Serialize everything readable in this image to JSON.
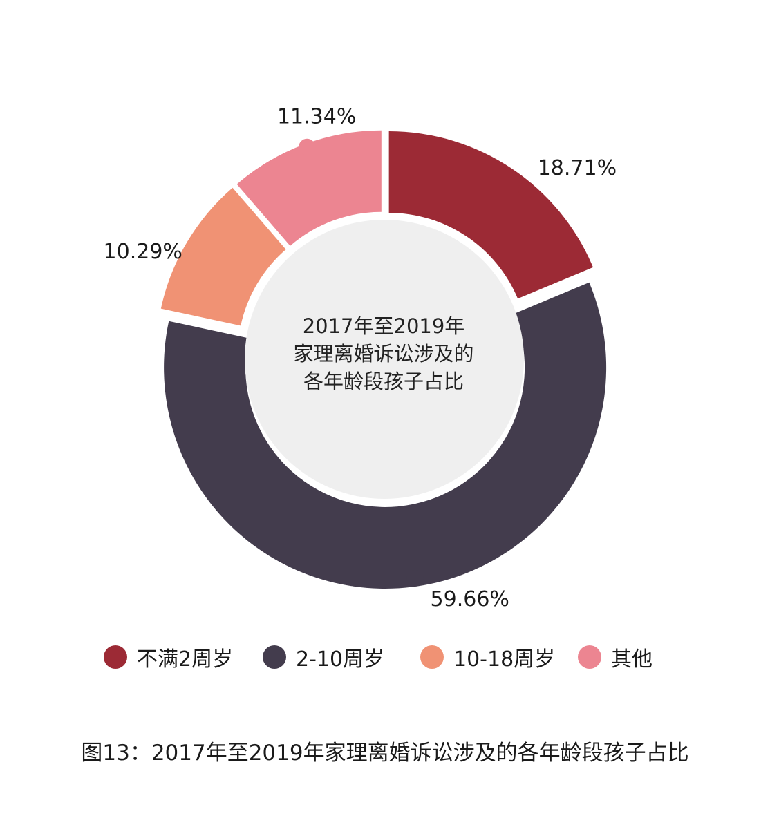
{
  "chart_data": {
    "type": "pie",
    "center_title": [
      "2017年至2019年",
      "家理离婚诉讼涉及的",
      "各年龄段孩子占比"
    ],
    "legend_position": "bottom",
    "slices": [
      {
        "label": "不满2周岁",
        "value": 18.71,
        "value_label": "18.71%",
        "color": "#9c2a35"
      },
      {
        "label": "2-10周岁",
        "value": 59.66,
        "value_label": "59.66%",
        "color": "#433c4d"
      },
      {
        "label": "10-18周岁",
        "value": 10.29,
        "value_label": "10.29%",
        "color": "#f09274"
      },
      {
        "label": "其他",
        "value": 11.34,
        "value_label": "11.34%",
        "color": "#ec8591"
      }
    ],
    "center_fill": "#efefef"
  },
  "caption": "图13：2017年至2019年家理离婚诉讼涉及的各年龄段孩子占比"
}
